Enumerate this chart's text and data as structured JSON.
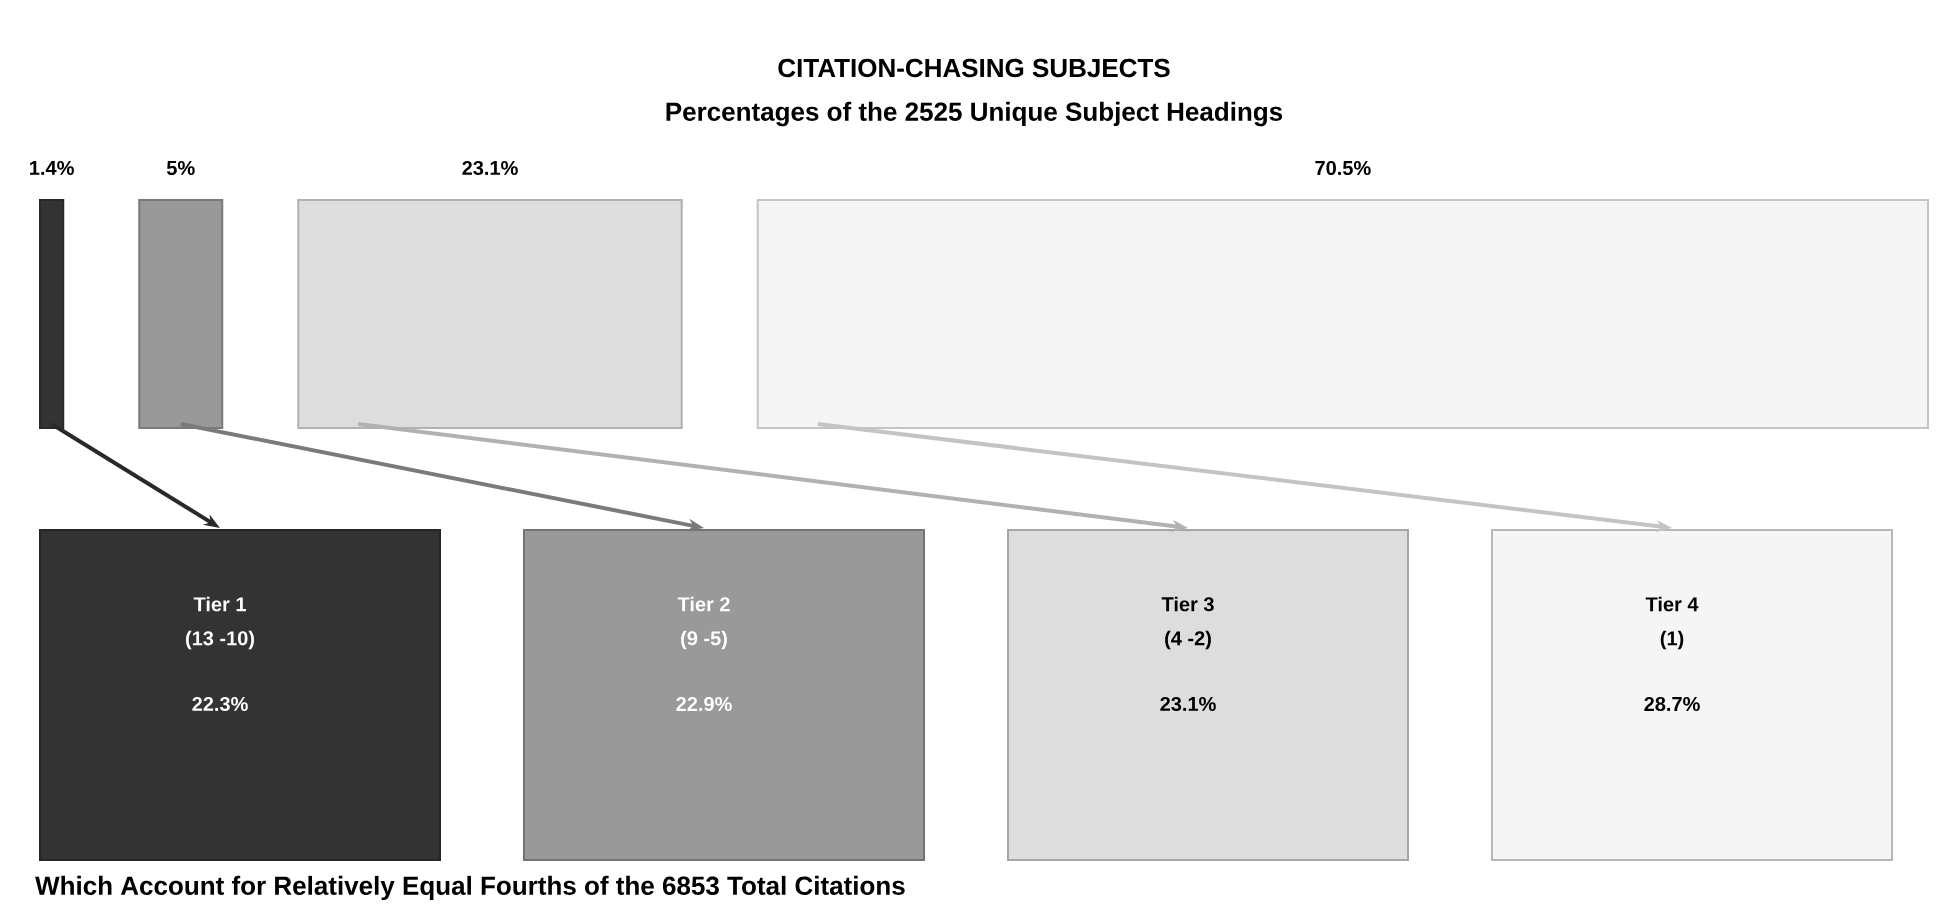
{
  "chart_data": [
    {
      "type": "other",
      "title": "CITATION-CHASING SUBJECTS",
      "subtitle": "Percentages of the 2525 Unique Subject Headings",
      "categories": [
        null,
        null,
        null,
        null
      ],
      "values": [
        1.4,
        5,
        23.1,
        70.5
      ],
      "value_labels": [
        "1.4%",
        "5%",
        "23.1%",
        "70.5%"
      ],
      "colors": [
        "#333333",
        "#999999",
        "#dddddd",
        "#f5f5f5"
      ]
    },
    {
      "type": "other",
      "categories": [
        "Tier 1",
        "Tier 2",
        "Tier 3",
        "Tier 4"
      ],
      "values": [
        22.3,
        22.9,
        23.1,
        28.7
      ],
      "value_labels": [
        "22.3%",
        "22.9%",
        "23.1%",
        "28.7%"
      ],
      "colors": [
        "#333333",
        "#999999",
        "#dddddd",
        "#f5f5f5"
      ],
      "annotations": [
        "(13   -10)",
        "(9  -5)",
        "(4  -2)",
        "(1)",
        "Which Account for Relatively Equal Fourths of the 6853 Total Citations"
      ]
    }
  ]
}
